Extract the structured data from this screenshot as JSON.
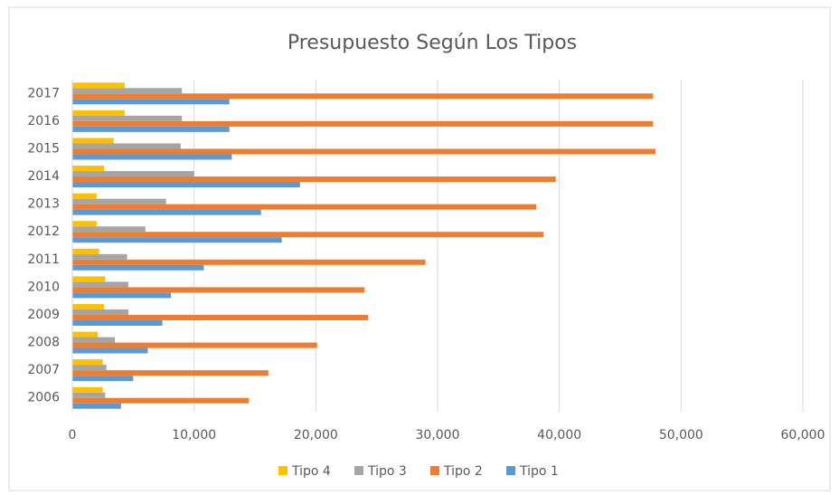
{
  "chart_data": {
    "type": "barh",
    "title": "Presupuesto Según Los Tipos",
    "categories": [
      "2006",
      "2007",
      "2008",
      "2009",
      "2010",
      "2011",
      "2012",
      "2013",
      "2014",
      "2015",
      "2016",
      "2017"
    ],
    "series": [
      {
        "name": "Tipo 1",
        "color": "#5b9bd5",
        "values": [
          4000,
          5000,
          6200,
          7400,
          8100,
          10800,
          17200,
          15500,
          18700,
          13100,
          12900,
          12900
        ]
      },
      {
        "name": "Tipo 2",
        "color": "#ed7d31",
        "values": [
          14500,
          16100,
          20100,
          24300,
          24000,
          29000,
          38700,
          38100,
          39700,
          47900,
          47700,
          47700
        ]
      },
      {
        "name": "Tipo 3",
        "color": "#a5a5a5",
        "values": [
          2700,
          2800,
          3500,
          4600,
          4600,
          4500,
          6000,
          7700,
          10000,
          8900,
          9000,
          9000
        ]
      },
      {
        "name": "Tipo 4",
        "color": "#ffc000",
        "values": [
          2500,
          2500,
          2100,
          2600,
          2700,
          2200,
          2000,
          2000,
          2600,
          3400,
          4300,
          4300
        ]
      }
    ],
    "xlim": [
      0,
      60000
    ],
    "xticks": [
      0,
      {
        "value": 10000,
        "label": "10,000"
      },
      {
        "value": 20000,
        "label": "20,000"
      },
      {
        "value": 30000,
        "label": "30,000"
      },
      {
        "value": 40000,
        "label": "40,000"
      },
      {
        "value": 50000,
        "label": "50,000"
      },
      {
        "value": 60000,
        "label": "60,000"
      }
    ],
    "grid": true,
    "legend": "bottom"
  }
}
